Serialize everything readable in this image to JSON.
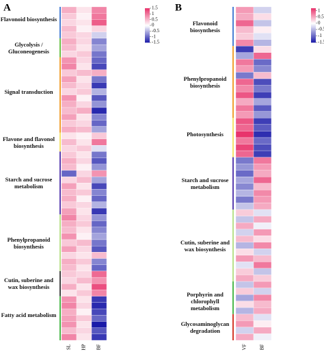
{
  "chart_data": [
    {
      "type": "heatmap",
      "panel_label": "A",
      "x": [
        "SL",
        "HP",
        "BF"
      ],
      "zlim": [
        -1.5,
        1.5
      ],
      "zticks": [
        1.5,
        1,
        0.5,
        0,
        -0.5,
        -1,
        -1.5
      ],
      "colorscale": [
        "#1a1aa8",
        "#ffffff",
        "#e8346c"
      ],
      "groups": [
        {
          "name": "Flavonoid biosynthesis",
          "color": "#4a7fd4",
          "values": [
            [
              0.6,
              0.2,
              0.9
            ],
            [
              0.4,
              0.1,
              1.0
            ],
            [
              0.3,
              0.2,
              1.2
            ],
            [
              0.5,
              0.1,
              0.3
            ],
            [
              0.4,
              0.3,
              -0.3
            ]
          ]
        },
        {
          "name": "Glycolysis / Gluconeogenesis",
          "color": "#6cc24a",
          "values": [
            [
              0.6,
              0.3,
              -0.8
            ],
            [
              0.5,
              0.2,
              -0.6
            ],
            [
              0.3,
              0.4,
              -0.9
            ]
          ]
        },
        {
          "name": "Signal transduction",
          "color": "#f0a030",
          "values": [
            [
              0.8,
              0.3,
              -1.0
            ],
            [
              0.9,
              0.2,
              -1.2
            ],
            [
              0.4,
              0.5,
              0.6
            ],
            [
              0.7,
              0.2,
              -0.9
            ],
            [
              0.5,
              0.3,
              -1.3
            ],
            [
              0.3,
              0.4,
              -0.5
            ],
            [
              0.8,
              0.1,
              -1.1
            ],
            [
              0.6,
              0.3,
              -0.7
            ],
            [
              0.5,
              0.6,
              -1.4
            ],
            [
              0.7,
              0.2,
              -0.8
            ],
            [
              0.4,
              0.3,
              -1.0
            ],
            [
              0.6,
              0.5,
              -0.6
            ]
          ]
        },
        {
          "name": "Flavone and flavonol biosynthesis",
          "color": "#f5e26a",
          "values": [
            [
              0.2,
              0.1,
              0.4
            ],
            [
              0.5,
              0.2,
              1.0
            ],
            [
              0.3,
              0.4,
              -0.2
            ]
          ]
        },
        {
          "name": "Starch and sucrose metabolism",
          "color": "#5a3fb0",
          "values": [
            [
              0.4,
              0.2,
              -0.9
            ],
            [
              0.6,
              0.3,
              -1.1
            ],
            [
              0.5,
              0.1,
              -0.7
            ],
            [
              -1.0,
              0.3,
              0.8
            ],
            [
              0.3,
              0.5,
              -0.6
            ],
            [
              0.7,
              0.2,
              -1.2
            ],
            [
              0.5,
              0.4,
              -0.8
            ],
            [
              0.6,
              0.1,
              -1.0
            ],
            [
              0.4,
              0.3,
              -0.5
            ],
            [
              0.7,
              0.2,
              -1.3
            ]
          ]
        },
        {
          "name": "Phenylpropanoid biosynthesis",
          "color": "#b8e08a",
          "values": [
            [
              0.9,
              0.3,
              -0.7
            ],
            [
              0.6,
              0.4,
              -1.0
            ],
            [
              0.5,
              0.2,
              -0.8
            ],
            [
              0.8,
              0.1,
              -0.6
            ],
            [
              0.4,
              0.5,
              -0.9
            ],
            [
              0.7,
              0.3,
              -1.1
            ],
            [
              0.3,
              0.2,
              0.5
            ],
            [
              0.6,
              0.4,
              -0.8
            ],
            [
              0.5,
              0.2,
              -1.0
            ]
          ]
        },
        {
          "name": "Cutin, suberine and wax biosynthesis",
          "color": "#444444",
          "values": [
            [
              0.4,
              0.3,
              1.1
            ],
            [
              0.3,
              0.5,
              0.8
            ],
            [
              0.6,
              0.2,
              1.3
            ],
            [
              0.2,
              0.4,
              0.9
            ]
          ]
        },
        {
          "name": "Fatty acid metabolism",
          "color": "#4cb84c",
          "values": [
            [
              0.8,
              0.2,
              -1.3
            ],
            [
              0.9,
              0.3,
              -1.4
            ],
            [
              0.6,
              0.1,
              -1.2
            ],
            [
              0.7,
              0.4,
              -1.0
            ],
            [
              0.8,
              0.2,
              -1.5
            ],
            [
              0.5,
              0.3,
              -1.1
            ],
            [
              0.9,
              0.2,
              -1.3
            ]
          ]
        }
      ]
    },
    {
      "type": "heatmap",
      "panel_label": "B",
      "x": [
        "VF",
        "BF"
      ],
      "zlim": [
        -1.54,
        1.2
      ],
      "zticks": [
        1,
        0.5,
        0,
        -0.5,
        -1,
        -1.54
      ],
      "colorscale": [
        "#1a1aa8",
        "#ffffff",
        "#e8346c"
      ],
      "groups": [
        {
          "name": "Flavonoid biosynthesis",
          "color": "#4a7fd4",
          "values": [
            [
              0.6,
              -0.3
            ],
            [
              0.5,
              0.2
            ],
            [
              0.9,
              -0.4
            ],
            [
              0.4,
              0.1
            ],
            [
              0.3,
              -0.2
            ],
            [
              0.7,
              -0.5
            ]
          ]
        },
        {
          "name": "Phenylpropanoid biosynthesis",
          "color": "#f0a030",
          "values": [
            [
              -1.3,
              0.2
            ],
            [
              -0.6,
              0.9
            ],
            [
              0.8,
              -1.0
            ],
            [
              0.6,
              -0.8
            ],
            [
              -0.9,
              0.4
            ],
            [
              0.9,
              -1.2
            ],
            [
              0.7,
              -0.9
            ],
            [
              1.0,
              -1.3
            ],
            [
              0.5,
              -0.6
            ],
            [
              0.8,
              -1.1
            ],
            [
              0.6,
              -0.7
            ]
          ]
        },
        {
          "name": "Photosynthesis",
          "color": "#f5e26a",
          "values": [
            [
              1.0,
              -1.3
            ],
            [
              0.9,
              -1.1
            ],
            [
              1.2,
              -1.4
            ],
            [
              0.8,
              -1.0
            ],
            [
              1.1,
              -1.2
            ],
            [
              0.9,
              -1.3
            ]
          ]
        },
        {
          "name": "Starch and sucrose metabolism",
          "color": "#5a3fb0",
          "values": [
            [
              -0.9,
              0.8
            ],
            [
              -0.7,
              0.6
            ],
            [
              -1.0,
              0.5
            ],
            [
              -0.6,
              0.9
            ],
            [
              -0.8,
              0.4
            ],
            [
              -0.5,
              0.7
            ],
            [
              -0.9,
              0.6
            ],
            [
              -0.4,
              0.5
            ]
          ]
        },
        {
          "name": "Cutin, suberine and wax biosynthesis",
          "color": "#b8e08a",
          "values": [
            [
              0.3,
              -0.2
            ],
            [
              -0.4,
              0.5
            ],
            [
              0.5,
              -0.1
            ],
            [
              -0.3,
              0.6
            ],
            [
              0.4,
              0.2
            ],
            [
              -0.5,
              0.7
            ],
            [
              0.2,
              -0.3
            ],
            [
              0.6,
              0.4
            ],
            [
              -0.2,
              0.8
            ],
            [
              0.3,
              -0.4
            ],
            [
              0.5,
              0.3
            ]
          ]
        },
        {
          "name": "Porphyrin and chlorophyll metabolism",
          "color": "#4cb84c",
          "values": [
            [
              -0.4,
              0.6
            ],
            [
              0.3,
              -0.3
            ],
            [
              -0.6,
              0.7
            ],
            [
              0.2,
              0.4
            ],
            [
              -0.5,
              0.5
            ]
          ]
        },
        {
          "name": "Glycosaminoglycan degradation",
          "color": "#d43a2a",
          "values": [
            [
              0.4,
              -0.2
            ],
            [
              0.6,
              0.1
            ],
            [
              -0.3,
              0.5
            ],
            [
              0.5,
              -0.1
            ]
          ]
        }
      ]
    }
  ]
}
